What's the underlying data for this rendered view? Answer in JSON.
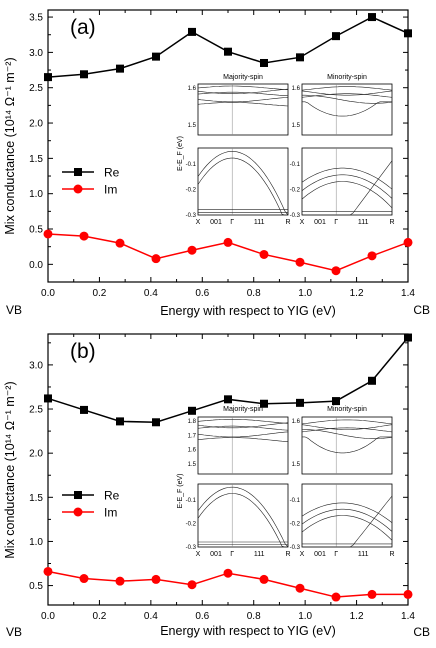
{
  "figure": {
    "panels_count": 2
  },
  "chart_data": [
    {
      "type": "line",
      "panel_label": "(a)",
      "xlabel": "Energy with respect to YIG (eV)",
      "ylabel": "Mix conductance (10¹⁴ Ω⁻¹ m⁻²)",
      "xlim": [
        0.0,
        1.4
      ],
      "ylim": [
        -0.25,
        3.6
      ],
      "xticks": [
        "0.0",
        "0.2",
        "0.4",
        "0.6",
        "0.8",
        "1.0",
        "1.2",
        "1.4"
      ],
      "yticks": [
        "0.0",
        "0.5",
        "1.0",
        "1.5",
        "2.0",
        "2.5",
        "3.0",
        "3.5"
      ],
      "corner_labels": {
        "left": "VB",
        "right": "CB"
      },
      "legend": {
        "placement": "middle-left"
      },
      "x": [
        0.0,
        0.14,
        0.28,
        0.42,
        0.56,
        0.7,
        0.84,
        0.98,
        1.12,
        1.26,
        1.4
      ],
      "series": [
        {
          "name": "Re",
          "color": "#000000",
          "marker": "square",
          "values": [
            2.65,
            2.69,
            2.77,
            2.94,
            3.29,
            3.01,
            2.85,
            2.93,
            3.23,
            3.5,
            3.27
          ]
        },
        {
          "name": "Im",
          "color": "#ff0000",
          "marker": "circle",
          "values": [
            0.43,
            0.4,
            0.3,
            0.08,
            0.2,
            0.31,
            0.14,
            0.03,
            -0.09,
            0.12,
            0.31
          ]
        }
      ],
      "inset": {
        "ylabel": "E-E_F (eV)",
        "top_ticks": [
          "1.6",
          "1.5"
        ],
        "bottom_ticks": [
          "-0.1",
          "-0.2",
          "-0.3"
        ],
        "panels": [
          {
            "title": "Majority-spin",
            "top_ytick_labels": [
              "1.6",
              "1.5"
            ],
            "bottom_ytick_labels": [
              "-0.1",
              "-0.2",
              "-0.3"
            ],
            "kpath_labels": [
              "X",
              "001",
              "Γ",
              "111",
              "R"
            ]
          },
          {
            "title": "Minority-spin",
            "top_ytick_labels": [
              "1.6",
              "1.5"
            ],
            "bottom_ytick_labels": [
              "-0.1",
              "-0.2",
              "-0.3"
            ],
            "kpath_labels": [
              "X",
              "001",
              "Γ",
              "111",
              "R"
            ]
          }
        ]
      }
    },
    {
      "type": "line",
      "panel_label": "(b)",
      "xlabel": "Energy with respect to YIG (eV)",
      "ylabel": "Mix conductance (10¹⁴ Ω⁻¹ m⁻²)",
      "xlim": [
        0.0,
        1.4
      ],
      "ylim": [
        0.28,
        3.35
      ],
      "xticks": [
        "0.0",
        "0.2",
        "0.4",
        "0.6",
        "0.8",
        "1.0",
        "1.2",
        "1.4"
      ],
      "yticks": [
        "0.5",
        "1.0",
        "1.5",
        "2.0",
        "2.5",
        "3.0"
      ],
      "corner_labels": {
        "left": "VB",
        "right": "CB"
      },
      "legend": {
        "placement": "middle-left"
      },
      "x": [
        0.0,
        0.14,
        0.28,
        0.42,
        0.56,
        0.7,
        0.84,
        0.98,
        1.12,
        1.26,
        1.4
      ],
      "series": [
        {
          "name": "Re",
          "color": "#000000",
          "marker": "square",
          "values": [
            2.62,
            2.49,
            2.36,
            2.35,
            2.48,
            2.61,
            2.56,
            2.57,
            2.59,
            2.82,
            3.31
          ]
        },
        {
          "name": "Im",
          "color": "#ff0000",
          "marker": "circle",
          "values": [
            0.66,
            0.58,
            0.55,
            0.57,
            0.51,
            0.64,
            0.57,
            0.47,
            0.37,
            0.4,
            0.4
          ]
        }
      ],
      "inset": {
        "ylabel": "E-E_F (eV)",
        "panels": [
          {
            "title": "Majority-spin",
            "top_ytick_labels": [
              "1.8",
              "1.7",
              "1.6",
              "1.5"
            ],
            "bottom_ytick_labels": [
              "-0.1",
              "-0.2",
              "-0.3"
            ],
            "kpath_labels": [
              "X",
              "001",
              "Γ",
              "111",
              "R"
            ]
          },
          {
            "title": "Minority-spin",
            "top_ytick_labels": [
              "1.6",
              "1.5"
            ],
            "bottom_ytick_labels": [
              "-0.1",
              "-0.2",
              "-0.3"
            ],
            "kpath_labels": [
              "X",
              "001",
              "Γ",
              "111",
              "R"
            ]
          }
        ]
      }
    }
  ]
}
